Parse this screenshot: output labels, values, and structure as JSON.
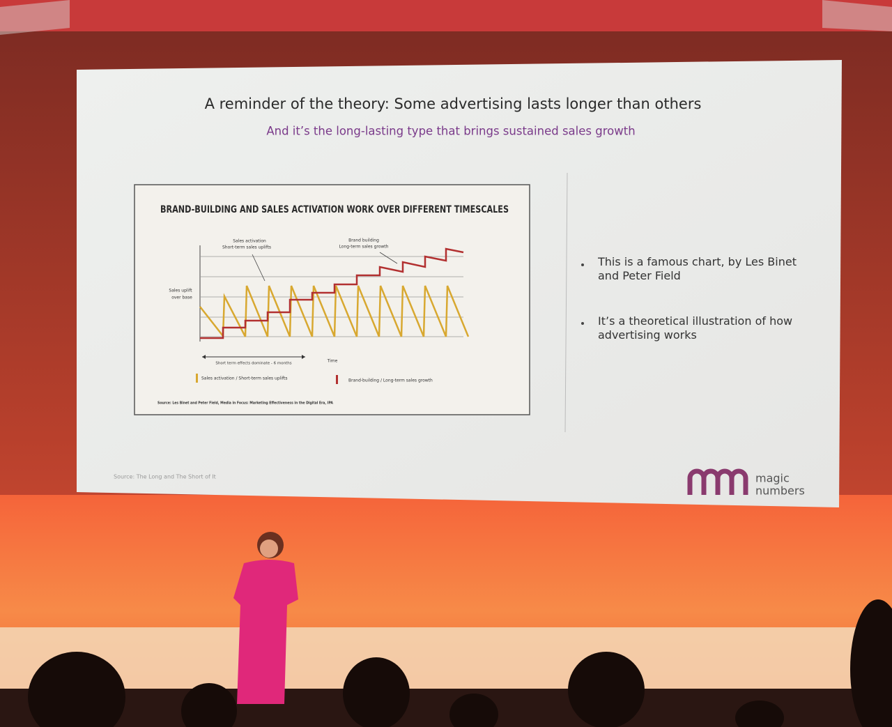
{
  "slide": {
    "title": "A reminder of the theory: Some advertising lasts longer than others",
    "subtitle": "And it’s the long-lasting type that brings sustained sales growth",
    "figure": {
      "title": "BRAND-BUILDING AND SALES ACTIVATION WORK OVER DIFFERENT TIMESCALES",
      "activation_note": {
        "title": "Sales activation",
        "text": "Short-term sales uplifts"
      },
      "brand_note": {
        "title": "Brand building",
        "text": "Long-term sales growth"
      },
      "y_label": {
        "line1": "Sales uplift",
        "line2": "over base"
      },
      "x_label": "Time",
      "range_note": "Short term effects dominate - 6 months",
      "legend": [
        "Sales activation / Short-term sales uplifts",
        "Brand-building / Long-term sales growth"
      ],
      "source": "Source: Les Binet and Peter Field, Media in Focus: Marketing Effectiveness in the Digital Era, IPA"
    },
    "bullets": [
      "This is a famous chart, by Les Binet and Peter Field",
      "It’s a theoretical illustration of how advertising works"
    ],
    "source": "Source: The Long and The Short of It",
    "logo": {
      "line1": "magic",
      "line2": "numbers"
    }
  }
}
